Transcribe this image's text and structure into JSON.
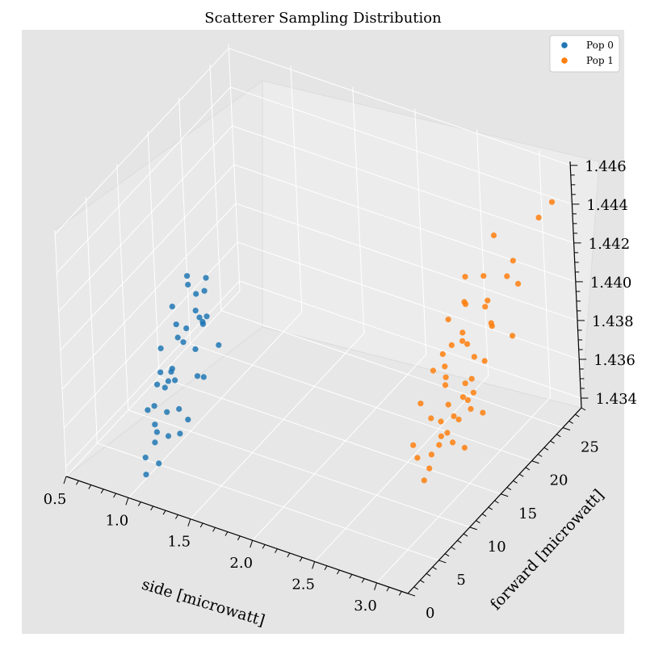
{
  "chart_data": {
    "type": "scatter",
    "title": "Scatterer Sampling Distribution",
    "xlabel": "side [microwatt]",
    "ylabel": "forward [microwatt]",
    "zlabel": "",
    "xlim": [
      0.5,
      3.25
    ],
    "ylim": [
      0,
      28
    ],
    "zlim": [
      1.4335,
      1.4462
    ],
    "x_ticks": [
      "0.5",
      "1.0",
      "1.5",
      "2.0",
      "2.5",
      "3.0"
    ],
    "y_ticks": [
      "0",
      "5",
      "10",
      "15",
      "20",
      "25"
    ],
    "z_ticks": [
      "1.434",
      "1.436",
      "1.438",
      "1.440",
      "1.442",
      "1.444",
      "1.446"
    ],
    "legend_position": "top-right",
    "colors": {
      "pop0": "#1f77b4",
      "pop1": "#ff7f0e",
      "pane": "#e5e5e5"
    },
    "series": [
      {
        "name": "Pop 0",
        "color": "#1f77b4",
        "points": [
          [
            0.98,
            6.2,
            1.4378
          ],
          [
            1.05,
            7.8,
            1.4392
          ],
          [
            0.92,
            5.1,
            1.4361
          ],
          [
            1.12,
            9.4,
            1.4402
          ],
          [
            1.01,
            4.3,
            1.4349
          ],
          [
            1.08,
            11.2,
            1.4388
          ],
          [
            0.95,
            8.6,
            1.4371
          ],
          [
            1.15,
            6.9,
            1.4355
          ],
          [
            1.03,
            10.1,
            1.4411
          ],
          [
            0.89,
            7.3,
            1.4366
          ],
          [
            1.1,
            5.6,
            1.4383
          ],
          [
            0.97,
            12.4,
            1.4397
          ],
          [
            1.06,
            3.8,
            1.4341
          ],
          [
            1.18,
            8.1,
            1.4374
          ],
          [
            0.93,
            9.9,
            1.4389
          ],
          [
            1.02,
            13.1,
            1.4404
          ],
          [
            1.09,
            4.9,
            1.4352
          ],
          [
            0.99,
            6.6,
            1.4369
          ],
          [
            1.14,
            10.7,
            1.4395
          ],
          [
            0.91,
            11.8,
            1.438
          ],
          [
            1.07,
            7.1,
            1.4358
          ],
          [
            1.0,
            2.9,
            1.4337
          ],
          [
            1.16,
            9.2,
            1.44
          ],
          [
            0.96,
            5.4,
            1.4363
          ],
          [
            1.04,
            8.8,
            1.4386
          ],
          [
            1.11,
            12.9,
            1.4372
          ],
          [
            0.94,
            6.0,
            1.4347
          ],
          [
            1.13,
            4.1,
            1.4368
          ],
          [
            1.01,
            10.4,
            1.4414
          ],
          [
            0.88,
            8.3,
            1.4381
          ],
          [
            1.2,
            7.6,
            1.439
          ],
          [
            1.05,
            11.5,
            1.4359
          ],
          [
            0.98,
            3.3,
            1.4344
          ],
          [
            1.09,
            6.3,
            1.4376
          ],
          [
            0.92,
            9.6,
            1.4399
          ],
          [
            1.17,
            5.2,
            1.4354
          ],
          [
            1.03,
            12.1,
            1.4385
          ],
          [
            0.95,
            7.9,
            1.4367
          ],
          [
            1.12,
            10.9,
            1.4407
          ],
          [
            1.0,
            4.6,
            1.4357
          ]
        ]
      },
      {
        "name": "Pop 1",
        "color": "#ff7f0e",
        "points": [
          [
            2.72,
            17.2,
            1.4372
          ],
          [
            2.84,
            18.6,
            1.4391
          ],
          [
            2.66,
            15.9,
            1.4358
          ],
          [
            2.91,
            20.3,
            1.4406
          ],
          [
            2.78,
            16.4,
            1.4366
          ],
          [
            2.6,
            14.1,
            1.4349
          ],
          [
            2.95,
            19.1,
            1.4383
          ],
          [
            2.71,
            21.2,
            1.4414
          ],
          [
            2.86,
            15.3,
            1.4352
          ],
          [
            2.68,
            18.0,
            1.4378
          ],
          [
            2.99,
            17.7,
            1.4362
          ],
          [
            2.75,
            13.6,
            1.4342
          ],
          [
            2.82,
            22.4,
            1.44
          ],
          [
            2.63,
            19.8,
            1.4395
          ],
          [
            2.92,
            16.8,
            1.437
          ],
          [
            2.79,
            14.9,
            1.4355
          ],
          [
            2.7,
            20.6,
            1.4387
          ],
          [
            2.88,
            18.3,
            1.4375
          ],
          [
            2.57,
            16.1,
            1.4363
          ],
          [
            3.02,
            21.8,
            1.4419
          ],
          [
            2.74,
            12.9,
            1.4338
          ],
          [
            2.85,
            17.4,
            1.4368
          ],
          [
            2.67,
            19.4,
            1.4384
          ],
          [
            2.94,
            15.6,
            1.435
          ],
          [
            2.76,
            23.1,
            1.4409
          ],
          [
            2.81,
            16.6,
            1.436
          ],
          [
            2.62,
            18.9,
            1.438
          ],
          [
            2.97,
            20.1,
            1.4398
          ],
          [
            2.73,
            14.4,
            1.4346
          ],
          [
            2.89,
            21.5,
            1.4393
          ],
          [
            2.69,
            17.9,
            1.4373
          ],
          [
            2.83,
            15.1,
            1.4357
          ],
          [
            3.05,
            22.9,
            1.4412
          ],
          [
            2.77,
            19.2,
            1.4389
          ],
          [
            2.64,
            13.9,
            1.4344
          ],
          [
            2.9,
            18.1,
            1.4369
          ],
          [
            2.8,
            24.2,
            1.4427
          ],
          [
            3.1,
            25.6,
            1.4438
          ],
          [
            2.87,
            16.2,
            1.4361
          ],
          [
            2.71,
            20.9,
            1.4402
          ],
          [
            2.93,
            17.0,
            1.4365
          ],
          [
            2.66,
            22.0,
            1.4396
          ],
          [
            3.15,
            26.8,
            1.4443
          ],
          [
            2.78,
            14.7,
            1.4351
          ],
          [
            2.84,
            19.6,
            1.4381
          ],
          [
            2.98,
            23.6,
            1.442
          ],
          [
            2.61,
            17.5,
            1.4376
          ],
          [
            2.75,
            15.7,
            1.4359
          ],
          [
            3.08,
            21.1,
            1.4392
          ],
          [
            2.82,
            18.4,
            1.4371
          ]
        ]
      }
    ]
  }
}
